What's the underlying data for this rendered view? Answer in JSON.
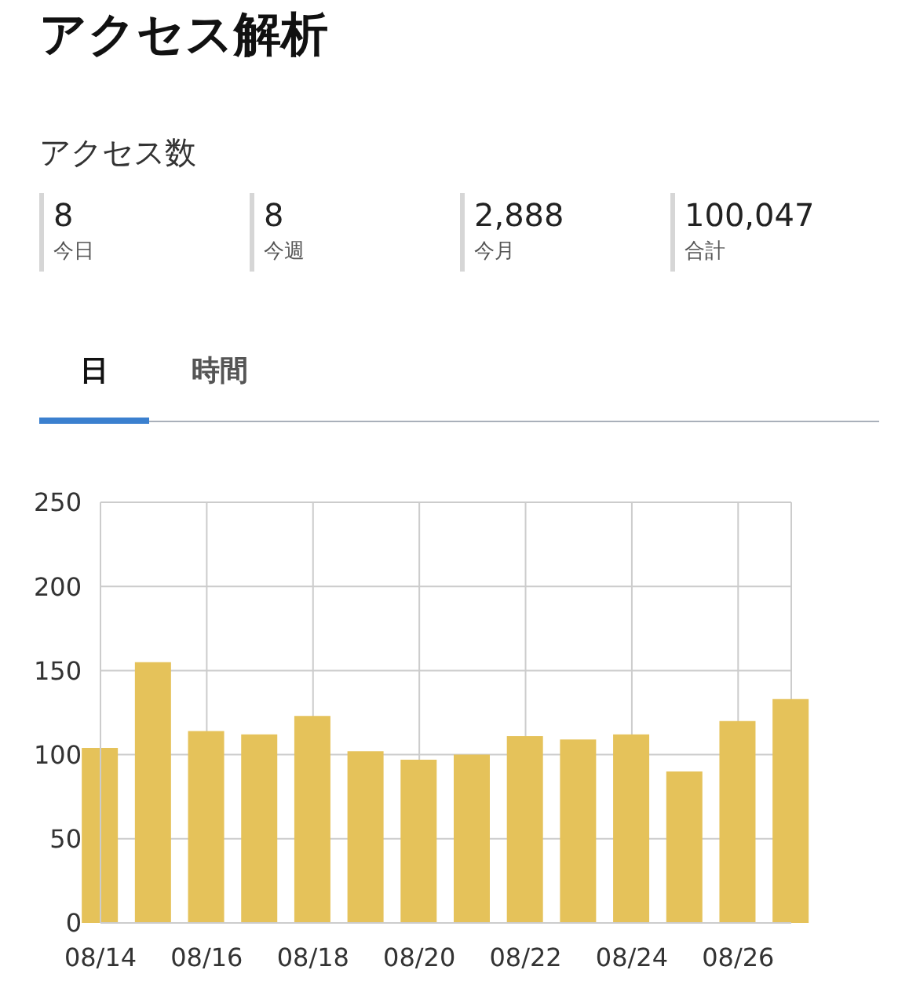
{
  "chart_data": [
    {
      "type": "other",
      "title": "アクセス解析",
      "subtitle": "アクセス数",
      "categories": [
        "今日",
        "今週",
        "今月",
        "合計"
      ],
      "value_labels": [
        "8",
        "8",
        "2,888",
        "100,047"
      ]
    },
    {
      "type": "bar",
      "annotations": [
        "日",
        "時間"
      ],
      "x": [
        "--08-14",
        "--08-15",
        "--08-16",
        "--08-17",
        "--08-18",
        "--08-19",
        "--08-20",
        "--08-21",
        "--08-22",
        "--08-23",
        "--08-24",
        "--08-25",
        "--08-26",
        "--08-27"
      ],
      "values": [
        104,
        155,
        114,
        112,
        123,
        102,
        97,
        100,
        111,
        109,
        112,
        90,
        120,
        133
      ],
      "color": "#e5c25a",
      "xlim": [
        "--08-14",
        "--08-27"
      ],
      "xticks": [
        {
          "value": "--08-14",
          "label": "08/14"
        },
        {
          "value": "--08-16",
          "label": "08/16"
        },
        {
          "value": "--08-18",
          "label": "08/18"
        },
        {
          "value": "--08-20",
          "label": "08/20"
        },
        {
          "value": "--08-22",
          "label": "08/22"
        },
        {
          "value": "--08-24",
          "label": "08/24"
        },
        {
          "value": "--08-26",
          "label": "08/26"
        }
      ],
      "ylim": [
        0,
        250
      ],
      "yticks": [
        0,
        50,
        100,
        150,
        200,
        250
      ],
      "grid": true
    }
  ]
}
